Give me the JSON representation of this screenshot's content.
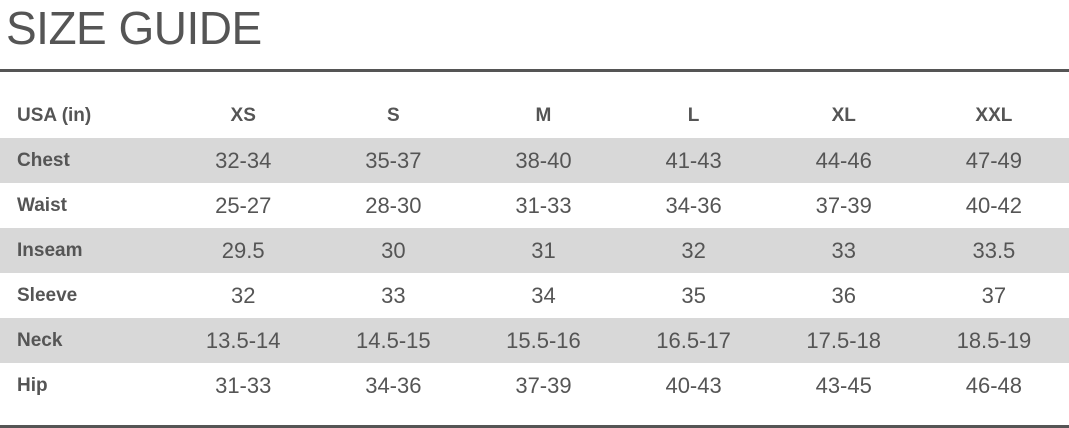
{
  "title": "SIZE GUIDE",
  "table": {
    "corner_label": "USA (in)",
    "sizes": [
      "XS",
      "S",
      "M",
      "L",
      "XL",
      "XXL"
    ],
    "rows": [
      {
        "label": "Chest",
        "values": [
          "32-34",
          "35-37",
          "38-40",
          "41-43",
          "44-46",
          "47-49"
        ],
        "shaded": true
      },
      {
        "label": "Waist",
        "values": [
          "25-27",
          "28-30",
          "31-33",
          "34-36",
          "37-39",
          "40-42"
        ],
        "shaded": false
      },
      {
        "label": "Inseam",
        "values": [
          "29.5",
          "30",
          "31",
          "32",
          "33",
          "33.5"
        ],
        "shaded": true
      },
      {
        "label": "Sleeve",
        "values": [
          "32",
          "33",
          "34",
          "35",
          "36",
          "37"
        ],
        "shaded": false
      },
      {
        "label": "Neck",
        "values": [
          "13.5-14",
          "14.5-15",
          "15.5-16",
          "16.5-17",
          "17.5-18",
          "18.5-19"
        ],
        "shaded": true
      },
      {
        "label": "Hip",
        "values": [
          "31-33",
          "34-36",
          "37-39",
          "40-43",
          "43-45",
          "46-48"
        ],
        "shaded": false
      }
    ]
  },
  "colors": {
    "text": "#555555",
    "row_shade": "#d8d8d8",
    "rule": "#555555"
  }
}
